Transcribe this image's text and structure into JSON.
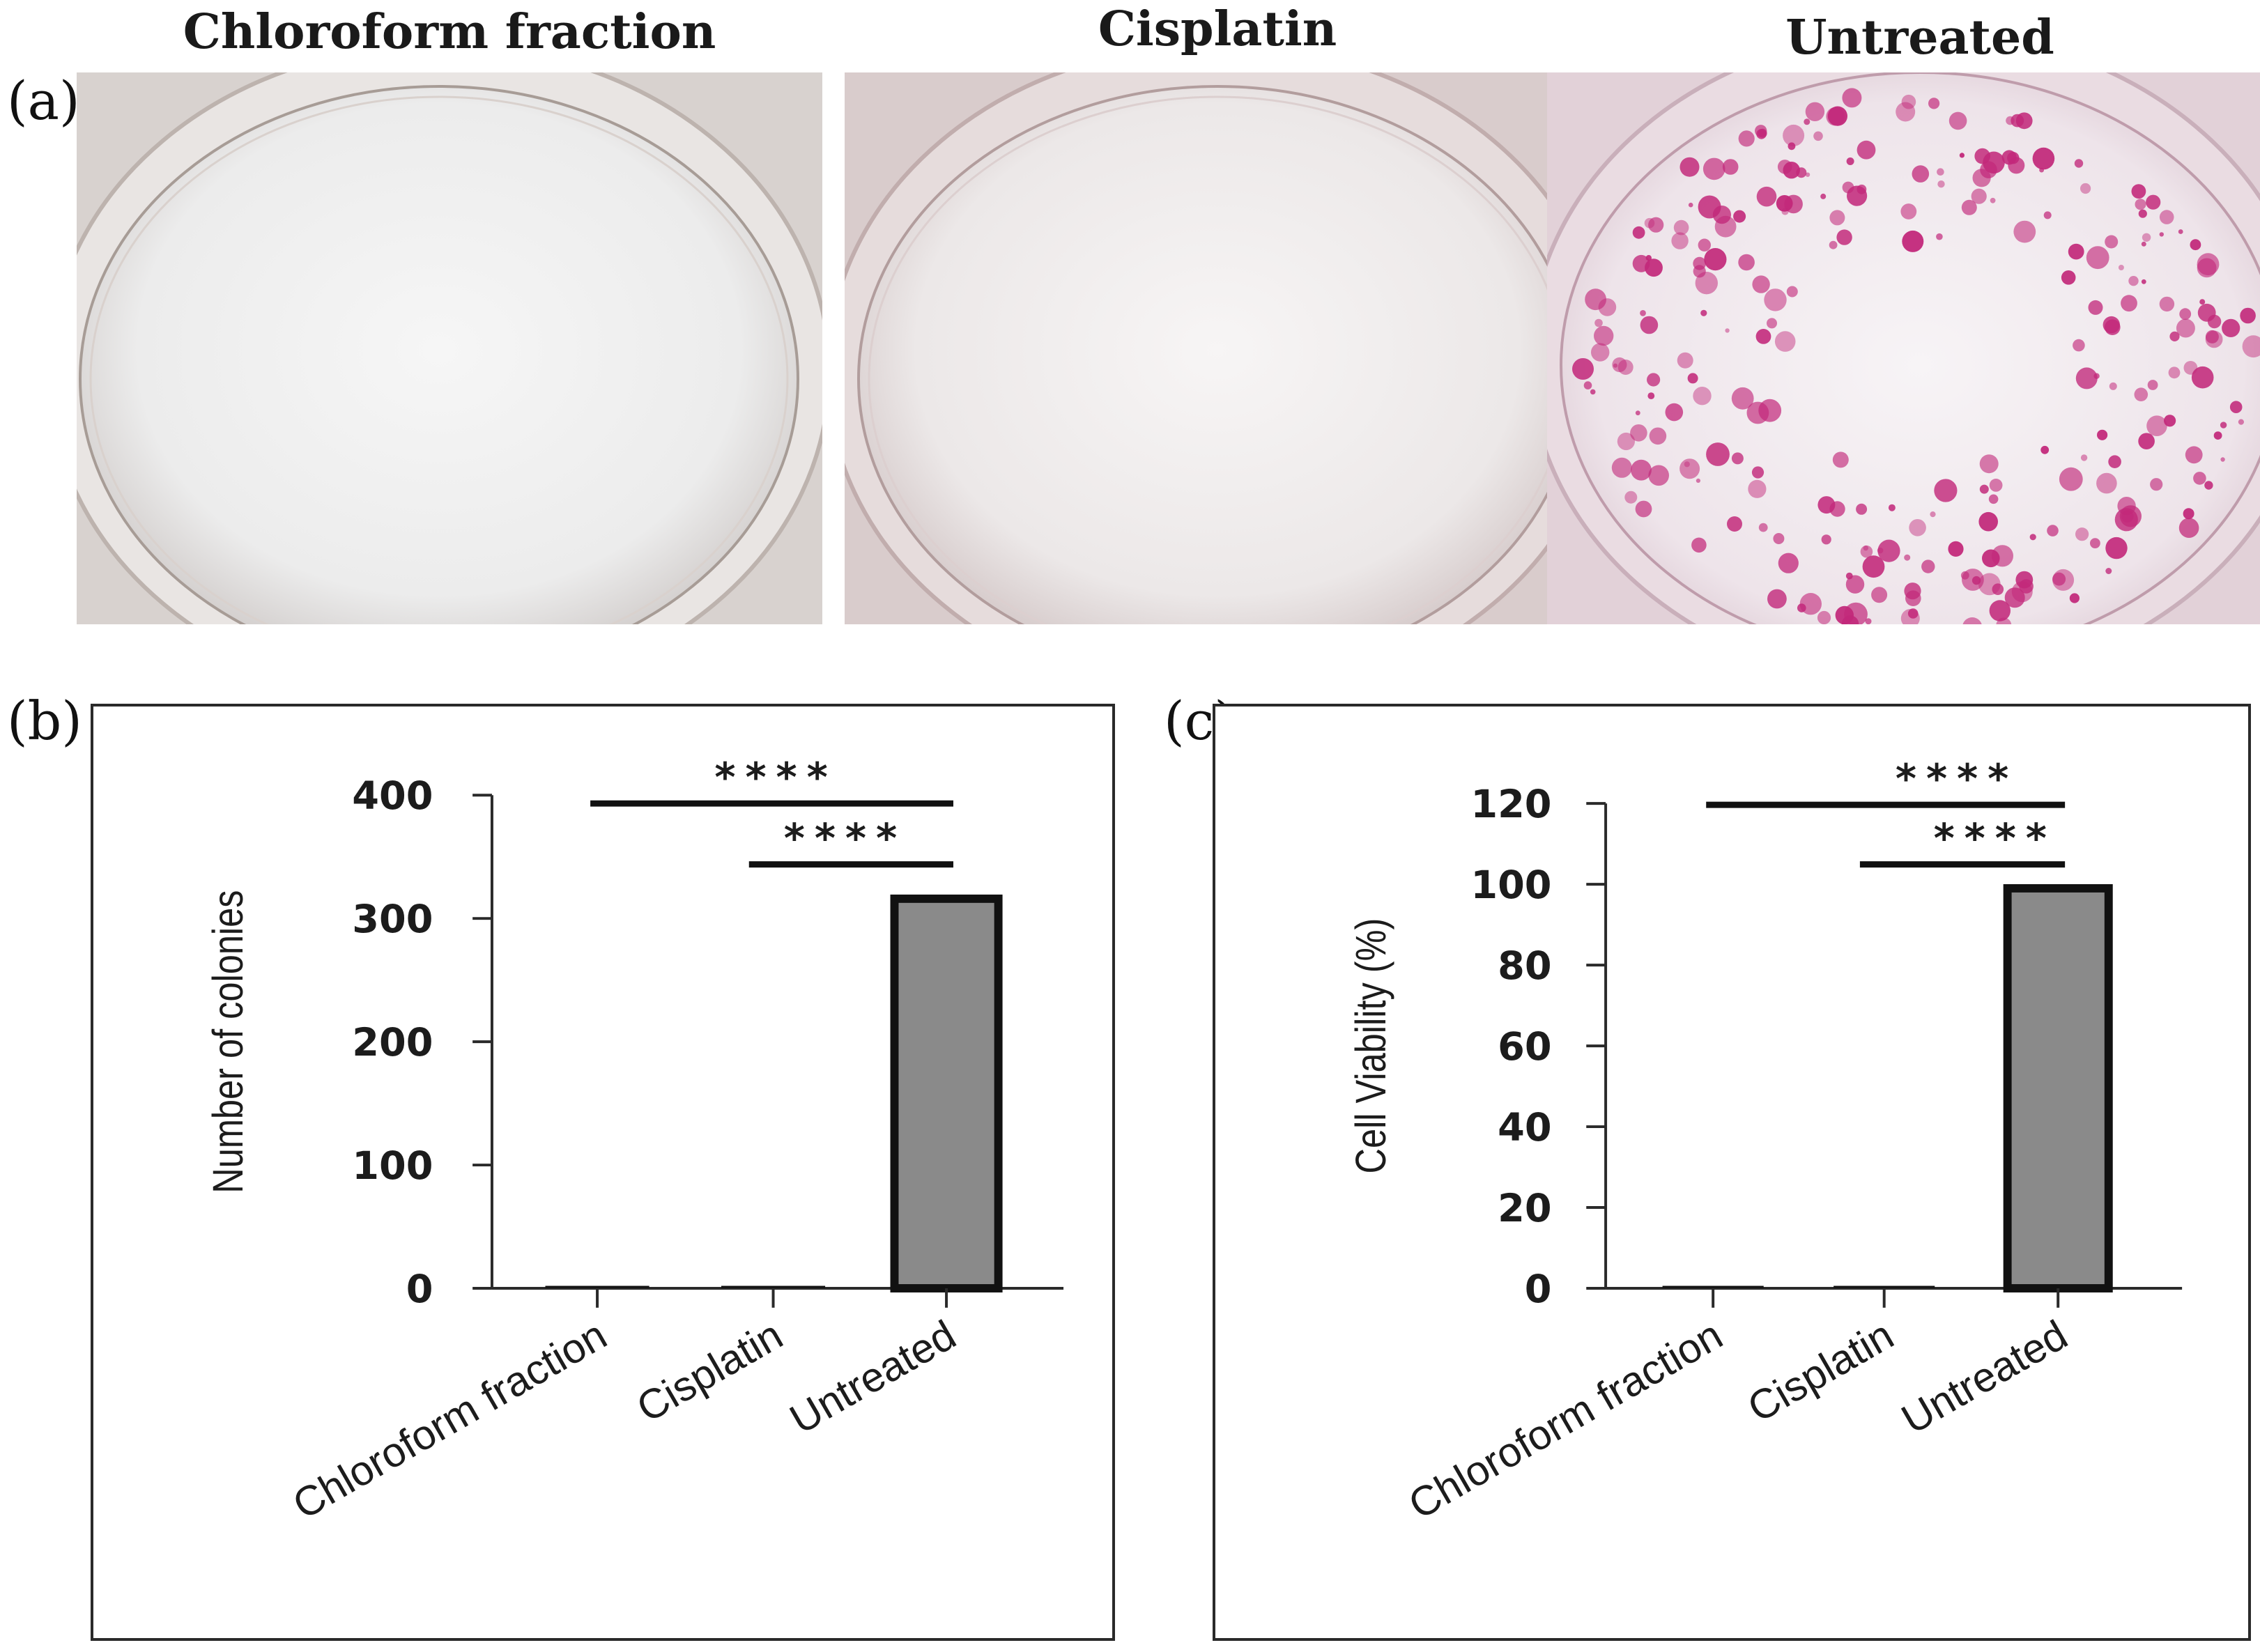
{
  "panels": {
    "a": {
      "letter": "(a)"
    },
    "b": {
      "letter": "(b)"
    },
    "c": {
      "letter": "(c)"
    }
  },
  "photos": [
    {
      "title": "Chloroform fraction",
      "colonies": "none"
    },
    {
      "title": "Cisplatin",
      "colonies": "none"
    },
    {
      "title": "Untreated",
      "colonies": "many"
    }
  ],
  "colors": {
    "bar_fill": "#8a8a8a",
    "bar_stroke": "#111111",
    "colony": "#c2287a",
    "axis": "#2a2a2a"
  },
  "chart_data": [
    {
      "type": "bar",
      "panel": "b",
      "categories": [
        "Chloroform fraction",
        "Cisplatin",
        "Untreated"
      ],
      "values": [
        0,
        0,
        316
      ],
      "ylabel": "Number of colonies",
      "xlabel": "",
      "ylim": [
        0,
        400
      ],
      "yticks": [
        "0",
        "100",
        "200",
        "300",
        "400"
      ],
      "significance": [
        {
          "from": "Chloroform fraction",
          "to": "Untreated",
          "label": "****"
        },
        {
          "from": "Cisplatin",
          "to": "Untreated",
          "label": "****"
        }
      ]
    },
    {
      "type": "bar",
      "panel": "c",
      "categories": [
        "Chloroform fraction",
        "Cisplatin",
        "Untreated"
      ],
      "values": [
        0,
        0,
        99
      ],
      "ylabel": "Cell Viability (%)",
      "xlabel": "",
      "ylim": [
        0,
        120
      ],
      "yticks": [
        "0",
        "20",
        "40",
        "60",
        "80",
        "100",
        "120"
      ],
      "significance": [
        {
          "from": "Chloroform fraction",
          "to": "Untreated",
          "label": "****"
        },
        {
          "from": "Cisplatin",
          "to": "Untreated",
          "label": "****"
        }
      ]
    }
  ]
}
